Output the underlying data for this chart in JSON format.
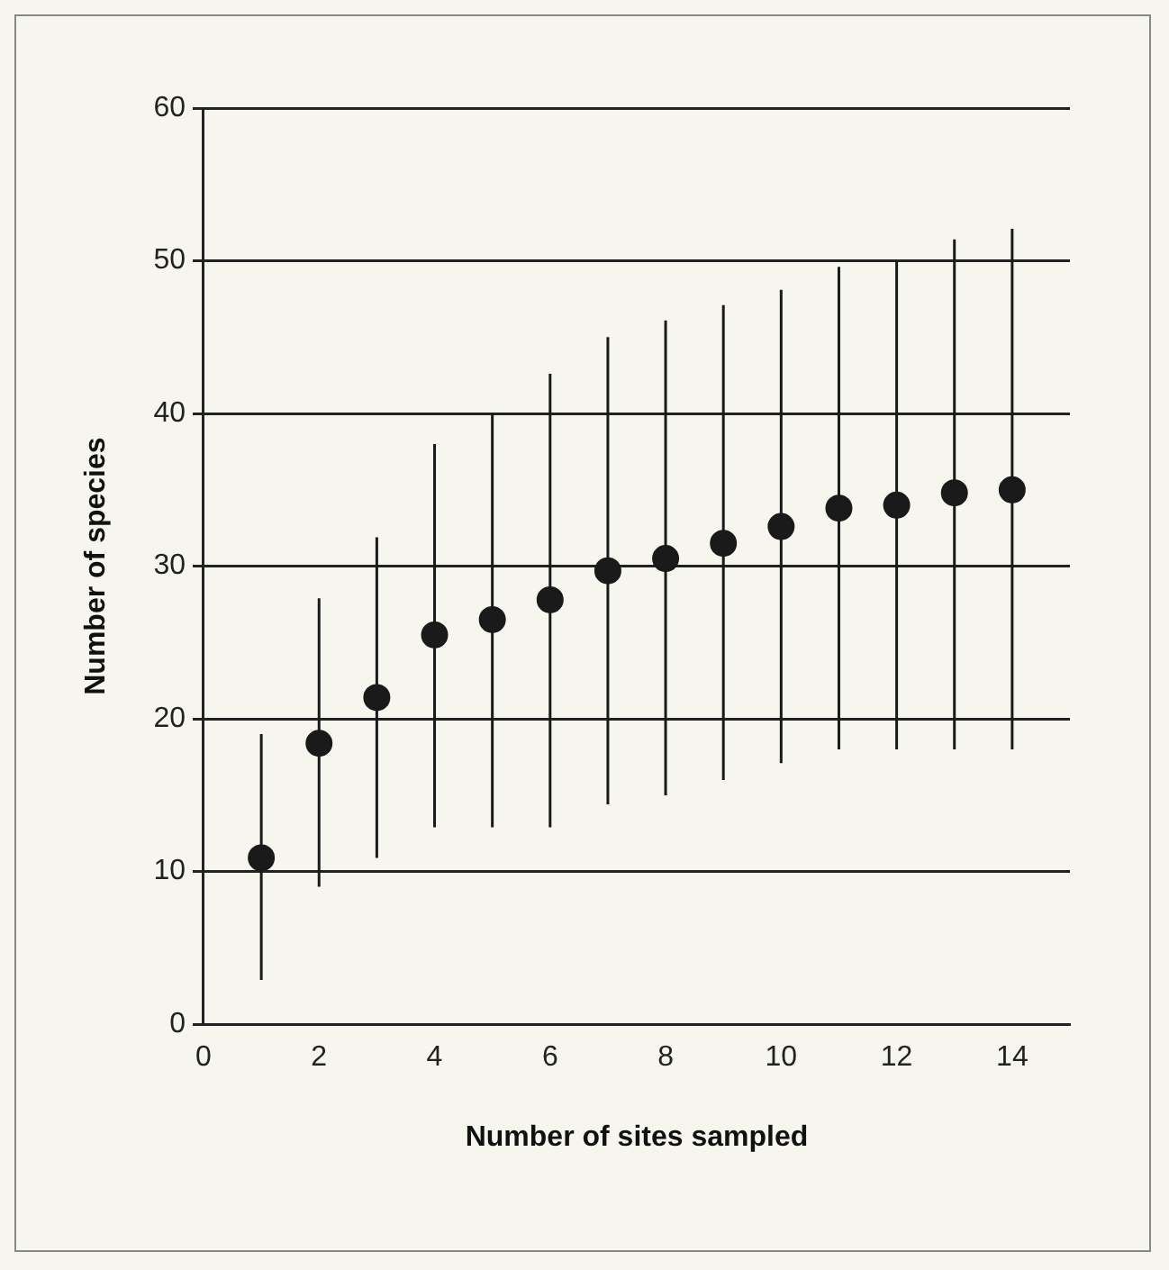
{
  "chart_data": {
    "type": "scatter",
    "xlabel": "Number of sites sampled",
    "ylabel": "Number of species",
    "x": [
      1,
      2,
      3,
      4,
      5,
      6,
      7,
      8,
      9,
      10,
      11,
      12,
      13,
      14
    ],
    "values": [
      10.9,
      18.4,
      21.4,
      25.5,
      26.5,
      27.8,
      29.7,
      30.5,
      31.5,
      32.6,
      33.8,
      34.0,
      34.8,
      35.0
    ],
    "errors": [
      [
        2.9,
        19.0
      ],
      [
        9.0,
        27.9
      ],
      [
        10.9,
        31.9
      ],
      [
        12.9,
        38.0
      ],
      [
        12.9,
        40.0
      ],
      [
        12.9,
        42.6
      ],
      [
        14.4,
        45.0
      ],
      [
        15.0,
        46.1
      ],
      [
        16.0,
        47.1
      ],
      [
        17.1,
        48.1
      ],
      [
        18.0,
        49.6
      ],
      [
        18.0,
        50.0
      ],
      [
        18.0,
        51.4
      ],
      [
        18.0,
        52.1
      ]
    ],
    "color": "#1a1a1a",
    "marker": "circle",
    "xlim": [
      0,
      15
    ],
    "xticks": [
      0,
      2,
      4,
      6,
      8,
      10,
      12,
      14
    ],
    "ylim": [
      0,
      60
    ],
    "yticks": [
      0,
      10,
      20,
      30,
      40,
      50,
      60
    ],
    "grid": "y",
    "legend": false
  }
}
